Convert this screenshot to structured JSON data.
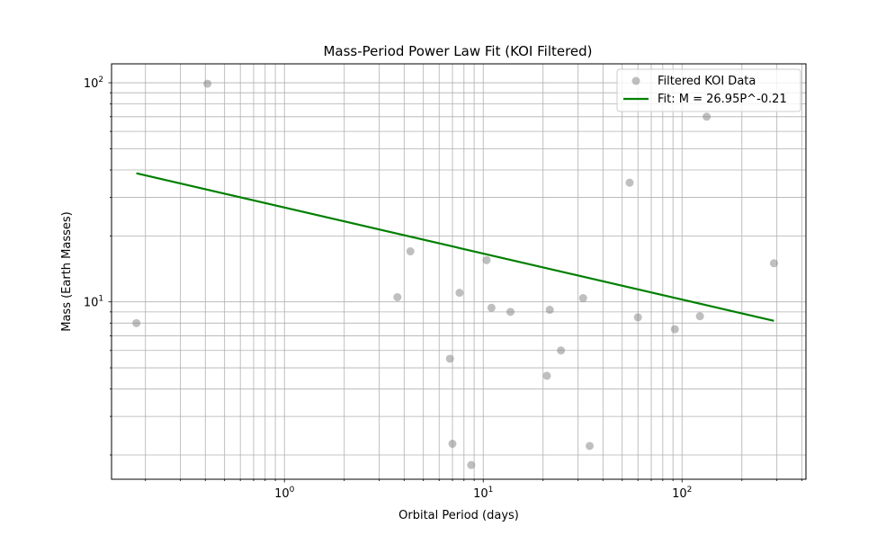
{
  "chart_data": {
    "type": "scatter",
    "title": "Mass-Period Power Law Fit (KOI Filtered)",
    "xlabel": "Orbital Period (days)",
    "ylabel": "Mass (Earth Masses)",
    "xscale": "log",
    "yscale": "log",
    "xlim": [
      0.135,
      420
    ],
    "ylim": [
      1.55,
      122
    ],
    "grid": true,
    "grid_which": "both",
    "legend_position": "top-right",
    "x_tick_labels": [
      {
        "base": "10",
        "exp": "0",
        "value": 1
      },
      {
        "base": "10",
        "exp": "1",
        "value": 10
      },
      {
        "base": "10",
        "exp": "2",
        "value": 100
      }
    ],
    "y_tick_labels": [
      {
        "base": "10",
        "exp": "1",
        "value": 10
      },
      {
        "base": "10",
        "exp": "2",
        "value": 100
      }
    ],
    "series": [
      {
        "name": "Filtered KOI Data",
        "kind": "scatter",
        "color": "#808080",
        "opacity": 0.5,
        "points": [
          {
            "x": 0.18,
            "y": 8.0
          },
          {
            "x": 0.41,
            "y": 99.0
          },
          {
            "x": 3.7,
            "y": 10.5
          },
          {
            "x": 4.3,
            "y": 17.0
          },
          {
            "x": 6.8,
            "y": 5.5
          },
          {
            "x": 7.0,
            "y": 2.25
          },
          {
            "x": 7.6,
            "y": 11.0
          },
          {
            "x": 8.7,
            "y": 1.8
          },
          {
            "x": 10.4,
            "y": 15.5
          },
          {
            "x": 11.0,
            "y": 9.4
          },
          {
            "x": 13.7,
            "y": 9.0
          },
          {
            "x": 20.9,
            "y": 4.6
          },
          {
            "x": 21.6,
            "y": 9.2
          },
          {
            "x": 24.6,
            "y": 6.0
          },
          {
            "x": 31.8,
            "y": 10.4
          },
          {
            "x": 34.3,
            "y": 2.2
          },
          {
            "x": 54.5,
            "y": 35.0
          },
          {
            "x": 60.0,
            "y": 8.5
          },
          {
            "x": 92.0,
            "y": 7.5
          },
          {
            "x": 123.0,
            "y": 8.6
          },
          {
            "x": 133.0,
            "y": 70.0
          },
          {
            "x": 290.0,
            "y": 15.0
          }
        ]
      },
      {
        "name": "Fit: M = 26.95P^-0.21",
        "kind": "line",
        "color": "#008000",
        "coefficient": 26.95,
        "exponent": -0.21,
        "x_range": [
          0.18,
          290.0
        ]
      }
    ]
  }
}
